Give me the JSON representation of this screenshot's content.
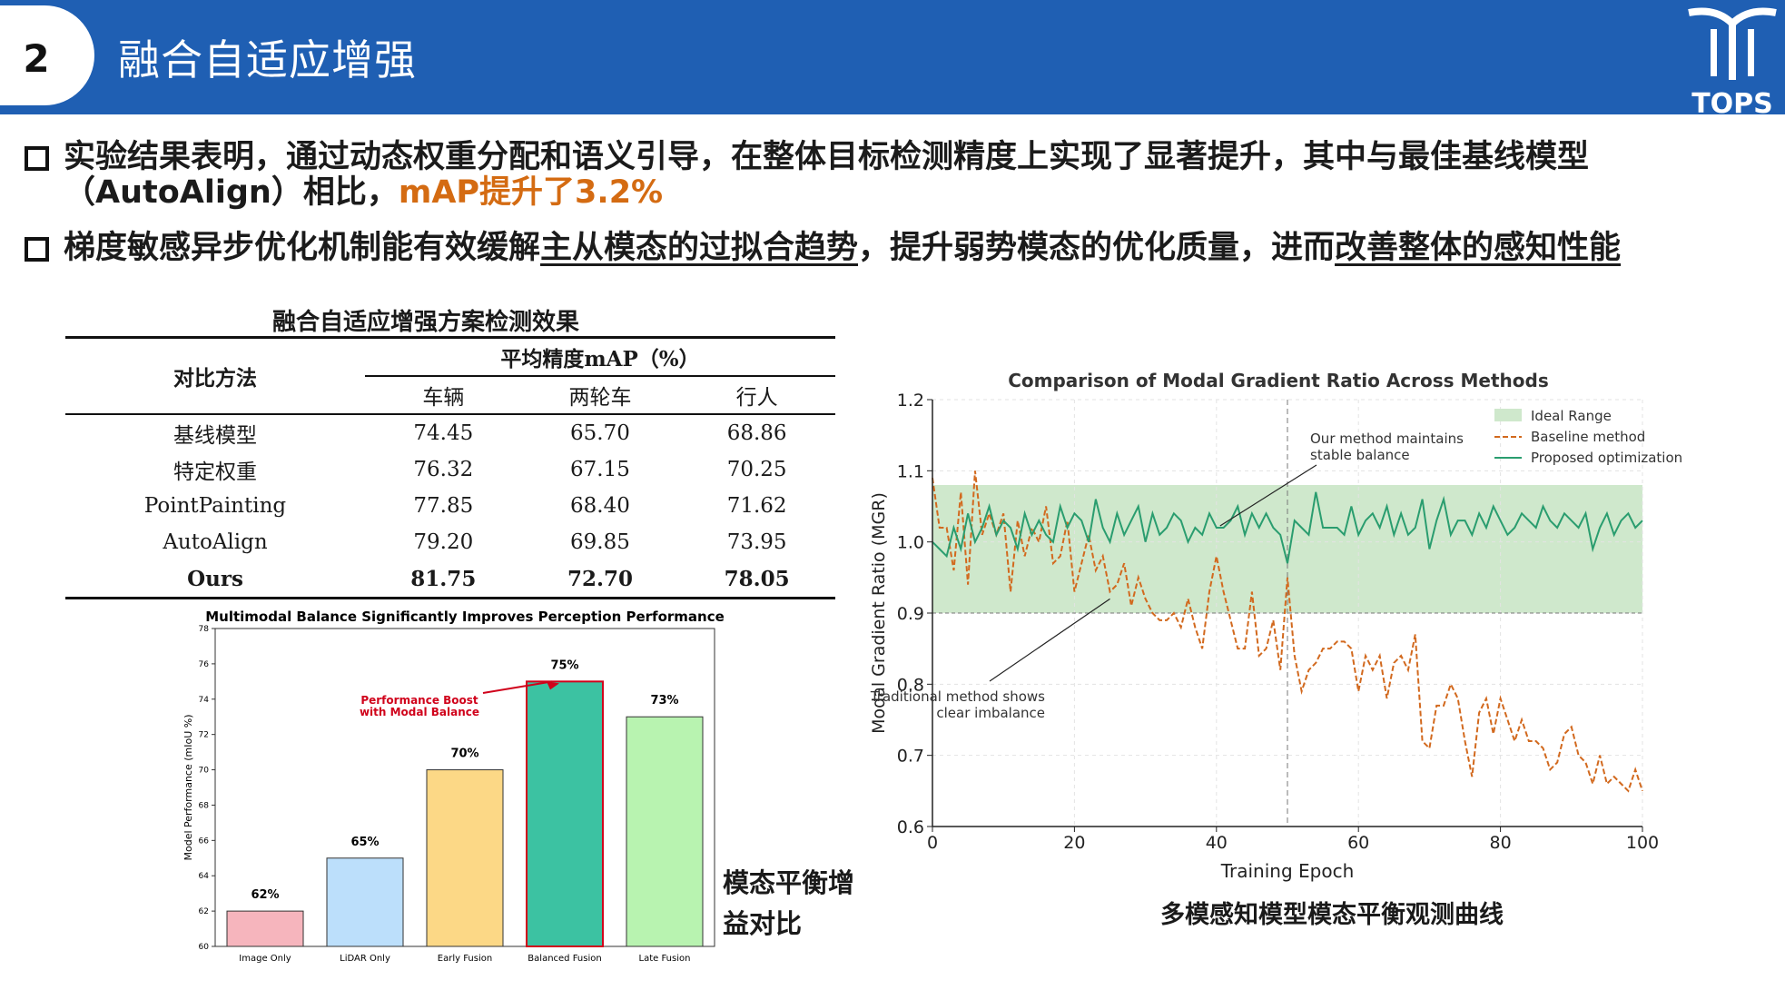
{
  "header": {
    "number": "2",
    "title": "融合自适应增强",
    "logo_text": "TOPS"
  },
  "bullets": [
    {
      "line1": "实验结果表明，通过动态权重分配和语义引导，在整体目标检测精度上实现了显著提升，其中与最佳基线模型",
      "line2_pre": "（AutoAlign）相比，",
      "line2_accent": "mAP提升了3.2%"
    },
    {
      "pre": "梯度敏感异步优化机制能有效缓解",
      "u1": "主从模态的过拟合趋势",
      "mid": "，提升弱势模态的优化质量，进而",
      "u2": "改善整体的感知性能"
    }
  ],
  "table": {
    "title": "融合自适应增强方案检测效果",
    "method_header": "对比方法",
    "group_header": "平均精度mAP（%）",
    "columns": [
      "车辆",
      "两轮车",
      "行人"
    ],
    "rows": [
      {
        "method": "基线模型",
        "values": [
          "74.45",
          "65.70",
          "68.86"
        ]
      },
      {
        "method": "特定权重",
        "values": [
          "76.32",
          "67.15",
          "70.25"
        ]
      },
      {
        "method": "PointPainting",
        "values": [
          "77.85",
          "68.40",
          "71.62"
        ]
      },
      {
        "method": "AutoAlign",
        "values": [
          "79.20",
          "69.85",
          "73.95"
        ]
      },
      {
        "method": "Ours",
        "values": [
          "81.75",
          "72.70",
          "78.05"
        ]
      }
    ]
  },
  "bar_label": {
    "line1": "模态平衡增",
    "line2": "益对比"
  },
  "line_caption": "多模感知模型模态平衡观测曲线",
  "chart_data": [
    {
      "type": "bar",
      "title": "Multimodal Balance Significantly Improves Perception Performance",
      "ylabel": "Model Performance (mIoU %)",
      "categories": [
        "Image Only",
        "LiDAR Only",
        "Early Fusion",
        "Balanced Fusion",
        "Late Fusion"
      ],
      "values": [
        62,
        65,
        70,
        75,
        73
      ],
      "data_labels": [
        "62%",
        "65%",
        "70%",
        "75%",
        "73%"
      ],
      "colors": [
        "#f6b5bd",
        "#bcdffb",
        "#fcd886",
        "#3cc2a2",
        "#b8f3b0"
      ],
      "highlight_edge": "#d0021b",
      "ylim": [
        60,
        78
      ],
      "yticks": [
        60,
        62,
        64,
        66,
        68,
        70,
        72,
        74,
        76,
        78
      ],
      "annotation": {
        "line1": "Performance Boost",
        "line2": "with Modal Balance",
        "color": "#d0021b",
        "target": "Balanced Fusion"
      }
    },
    {
      "type": "line",
      "title": "Comparison of Modal Gradient Ratio Across Methods",
      "xlabel": "Training Epoch",
      "ylabel": "Modal Gradient Ratio (MGR)",
      "xlim": [
        0,
        100
      ],
      "ylim": [
        0.6,
        1.2
      ],
      "xticks": [
        0,
        20,
        40,
        60,
        80,
        100
      ],
      "yticks": [
        0.6,
        0.7,
        0.8,
        0.9,
        1.0,
        1.1,
        1.2
      ],
      "grid": true,
      "ideal_range": [
        0.9,
        1.08
      ],
      "vline_x": 50,
      "legend": {
        "placement": "top-right",
        "entries": [
          "Ideal Range",
          "Baseline method",
          "Proposed optimization"
        ]
      },
      "annotations": [
        {
          "line1": "Our method maintains",
          "line2": "stable balance",
          "target_x": 40,
          "target_y": 1.02
        },
        {
          "line1": "Traditional method shows",
          "line2": "clear imbalance",
          "target_x": 25,
          "target_y": 0.92
        }
      ],
      "series": [
        {
          "name": "Baseline method",
          "color": "#d2691e",
          "values": [
            1.09,
            1.02,
            1.02,
            0.96,
            1.07,
            0.94,
            1.1,
            1.01,
            1.04,
            1.01,
            1.04,
            0.93,
            1.03,
            0.98,
            1.02,
            1.0,
            1.05,
            0.97,
            0.98,
            1.03,
            0.93,
            0.97,
            1.01,
            0.96,
            0.98,
            0.93,
            0.94,
            0.97,
            0.91,
            0.95,
            0.92,
            0.9,
            0.89,
            0.89,
            0.9,
            0.88,
            0.92,
            0.88,
            0.85,
            0.93,
            0.98,
            0.93,
            0.89,
            0.85,
            0.85,
            0.93,
            0.84,
            0.85,
            0.89,
            0.82,
            0.95,
            0.84,
            0.79,
            0.82,
            0.83,
            0.85,
            0.85,
            0.86,
            0.86,
            0.85,
            0.79,
            0.84,
            0.82,
            0.84,
            0.78,
            0.83,
            0.84,
            0.82,
            0.87,
            0.72,
            0.71,
            0.77,
            0.77,
            0.8,
            0.78,
            0.72,
            0.67,
            0.76,
            0.78,
            0.73,
            0.78,
            0.75,
            0.72,
            0.75,
            0.72,
            0.72,
            0.71,
            0.68,
            0.69,
            0.73,
            0.74,
            0.7,
            0.69,
            0.66,
            0.7,
            0.66,
            0.67,
            0.66,
            0.65,
            0.68,
            0.65
          ]
        },
        {
          "name": "Proposed optimization",
          "color": "#2a9d6f",
          "values": [
            1.0,
            0.99,
            0.98,
            1.02,
            0.99,
            1.04,
            1.0,
            1.02,
            1.05,
            1.01,
            1.03,
            1.02,
            0.99,
            1.04,
            1.01,
            1.03,
            1.01,
            1.0,
            1.05,
            1.02,
            1.04,
            1.03,
            1.0,
            1.06,
            1.02,
            1.0,
            1.04,
            1.01,
            1.03,
            1.05,
            1.0,
            1.04,
            1.01,
            1.02,
            1.04,
            1.03,
            1.0,
            1.02,
            1.01,
            1.04,
            1.02,
            1.02,
            1.03,
            1.05,
            1.01,
            1.04,
            1.02,
            1.04,
            1.02,
            1.01,
            0.97,
            1.03,
            1.02,
            1.01,
            1.07,
            1.02,
            1.02,
            1.02,
            1.01,
            1.05,
            1.01,
            1.03,
            1.04,
            1.02,
            1.05,
            1.01,
            1.04,
            1.01,
            1.02,
            1.06,
            0.99,
            1.03,
            1.06,
            1.01,
            1.03,
            1.03,
            1.01,
            1.04,
            1.02,
            1.05,
            1.03,
            1.01,
            1.02,
            1.04,
            1.03,
            1.02,
            1.05,
            1.03,
            1.02,
            1.04,
            1.03,
            1.02,
            1.04,
            0.99,
            1.02,
            1.04,
            1.01,
            1.03,
            1.04,
            1.02,
            1.03
          ]
        }
      ]
    }
  ]
}
